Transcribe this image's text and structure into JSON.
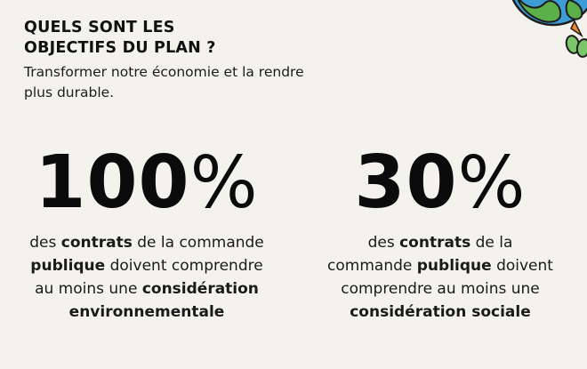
{
  "header": {
    "title_line1": "QUELS SONT LES",
    "title_line2": "OBJECTIFS DU PLAN ?",
    "subtitle_line1": "Transformer notre économie et la rendre",
    "subtitle_line2": "plus durable."
  },
  "stats": [
    {
      "value": "100",
      "unit": "%",
      "lines": [
        [
          {
            "t": "des ",
            "b": false
          },
          {
            "t": "contrats",
            "b": true
          },
          {
            "t": " de la commande",
            "b": false
          }
        ],
        [
          {
            "t": "publique",
            "b": true
          },
          {
            "t": " doivent comprendre",
            "b": false
          }
        ],
        [
          {
            "t": "au moins une ",
            "b": false
          },
          {
            "t": "considération",
            "b": true
          }
        ],
        [
          {
            "t": "environnementale",
            "b": true
          }
        ]
      ]
    },
    {
      "value": "30",
      "unit": "%",
      "lines": [
        [
          {
            "t": "des ",
            "b": false
          },
          {
            "t": "contrats",
            "b": true
          },
          {
            "t": " de la",
            "b": false
          }
        ],
        [
          {
            "t": "commande ",
            "b": false
          },
          {
            "t": "publique",
            "b": true
          },
          {
            "t": " doivent",
            "b": false
          }
        ],
        [
          {
            "t": "comprendre au moins une",
            "b": false
          }
        ],
        [
          {
            "t": "considération sociale",
            "b": true
          }
        ]
      ]
    }
  ],
  "colors": {
    "background": "#f3f2ec",
    "text": "#111111",
    "globe_water": "#3d9bd6",
    "globe_land": "#5bb04a",
    "accent_orange": "#ef8a2e"
  },
  "icons": {
    "globe": "earth-globe-illustration"
  }
}
